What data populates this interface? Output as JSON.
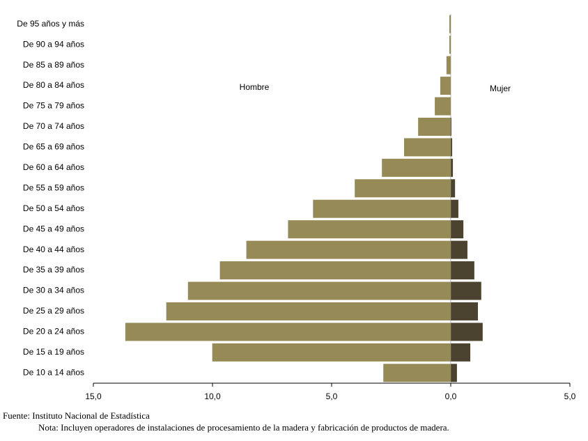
{
  "chart_data": {
    "type": "pyramid",
    "categories": [
      "De 95 años y más",
      "De 90 a 94 años",
      "De 85 a 89 años",
      "De 80 a 84 años",
      "De 75 a 79 años",
      "De 70 a 74 años",
      "De 65 a 69 años",
      "De 60 a 64 años",
      "De 55 a 59 años",
      "De 50 a 54 años",
      "De 45 a 49 años",
      "De 40 a 44 años",
      "De 35 a 39 años",
      "De 30 a 34 años",
      "De 25 a 29 años",
      "De 20 a 24 años",
      "De 15 a 19 años",
      "De 10 a 14 años"
    ],
    "series": [
      {
        "name": "Hombre",
        "color": "#968b57",
        "values": [
          -0.06,
          -0.06,
          -0.18,
          -0.44,
          -0.67,
          -1.37,
          -1.96,
          -2.89,
          -4.03,
          -5.78,
          -6.83,
          -8.58,
          -9.69,
          -11.03,
          -11.94,
          -13.66,
          -10.01,
          -2.83
        ]
      },
      {
        "name": "Mujer",
        "color": "#4b4330",
        "values": [
          0,
          0,
          0,
          0,
          0,
          0.03,
          0.06,
          0.09,
          0.18,
          0.32,
          0.53,
          0.7,
          0.99,
          1.28,
          1.14,
          1.34,
          0.82,
          0.26
        ]
      }
    ],
    "xlim": [
      -15,
      5
    ],
    "xticks": [
      {
        "value": -15,
        "label": "15,0"
      },
      {
        "value": -10,
        "label": "10,0"
      },
      {
        "value": -5,
        "label": "5,0"
      },
      {
        "value": 0,
        "label": "0,0"
      },
      {
        "value": 5,
        "label": "5,0"
      }
    ],
    "source": "Fuente: Instituto Nacional de Estadística",
    "note": "Nota: Incluyen operadores de instalaciones de procesamiento de la madera y fabricación de productos de madera."
  }
}
